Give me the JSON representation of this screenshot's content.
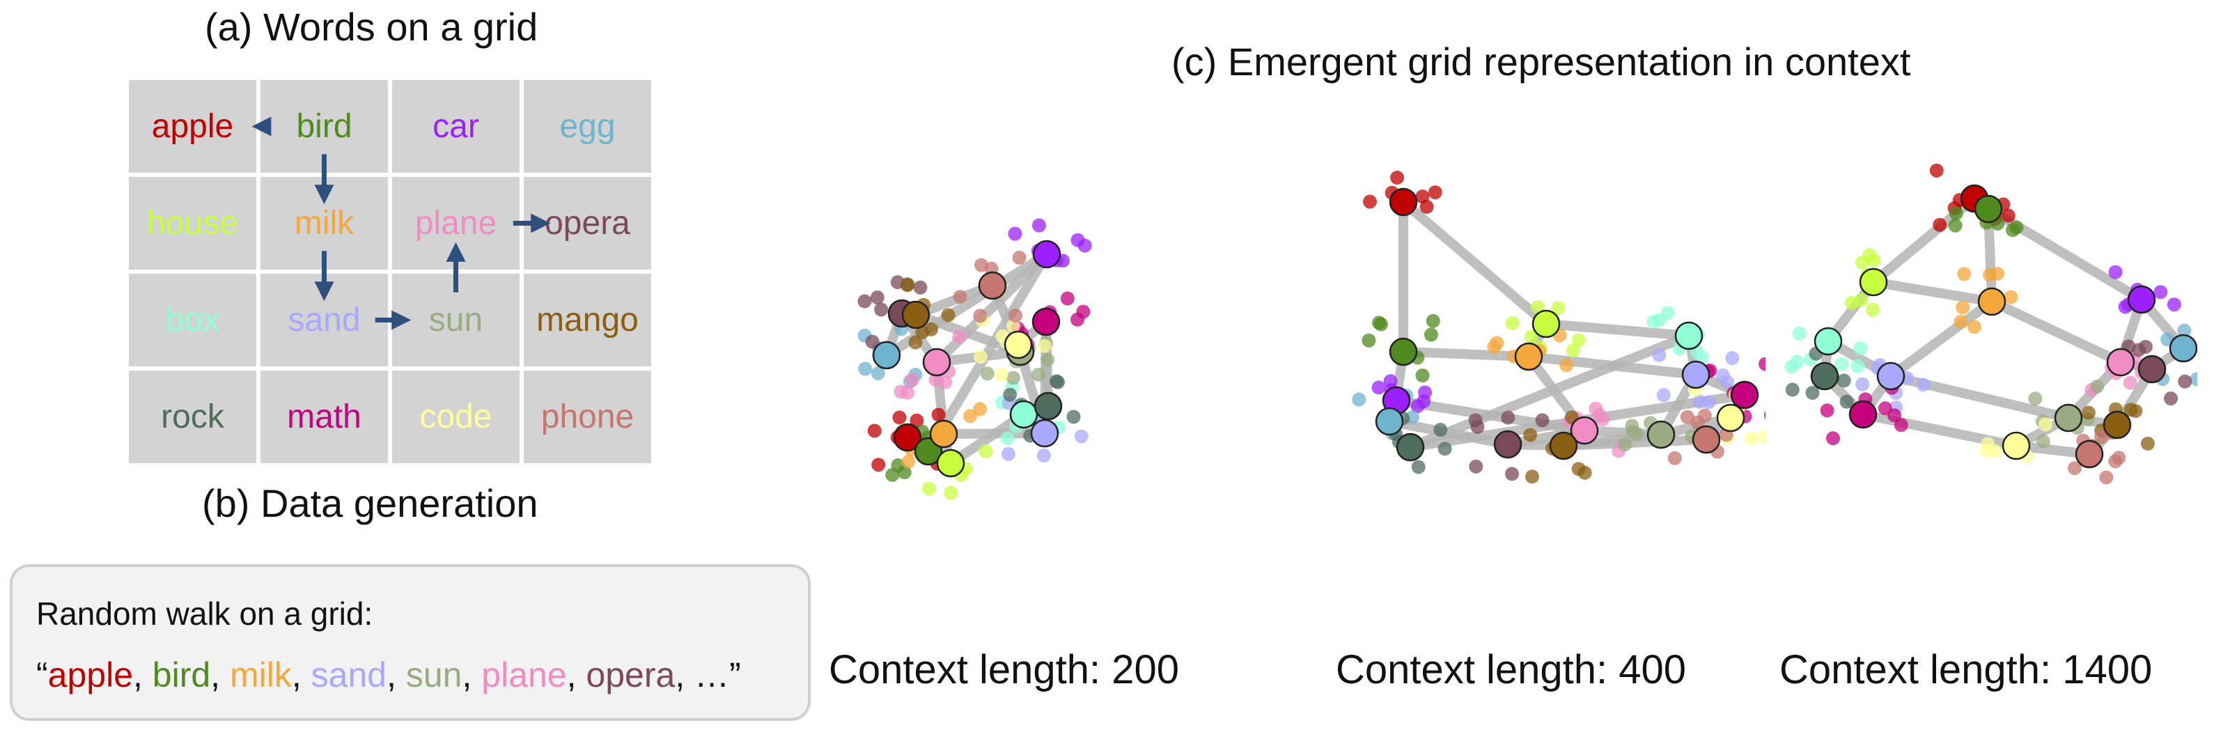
{
  "titles": {
    "a": "(a) Words on a grid",
    "b": "(b) Data generation",
    "c": "(c) Emergent grid representation in context"
  },
  "words": [
    {
      "text": "apple",
      "color": "#c00000"
    },
    {
      "text": "bird",
      "color": "#4f8a1e"
    },
    {
      "text": "car",
      "color": "#9b1fff"
    },
    {
      "text": "egg",
      "color": "#6fb3cf"
    },
    {
      "text": "house",
      "color": "#c8ff3c"
    },
    {
      "text": "milk",
      "color": "#f4a73a"
    },
    {
      "text": "plane",
      "color": "#f08cc3"
    },
    {
      "text": "opera",
      "color": "#7a4a5a"
    },
    {
      "text": "box",
      "color": "#8fffd8"
    },
    {
      "text": "sand",
      "color": "#a9a8ff"
    },
    {
      "text": "sun",
      "color": "#9aab82"
    },
    {
      "text": "mango",
      "color": "#8a5f12"
    },
    {
      "text": "rock",
      "color": "#4f6c61"
    },
    {
      "text": "math",
      "color": "#c4007f"
    },
    {
      "text": "code",
      "color": "#ffff9a"
    },
    {
      "text": "phone",
      "color": "#c57670"
    }
  ],
  "walk": {
    "title": "Random walk on a grid:",
    "open_quote": "“",
    "sequence": [
      {
        "text": "apple",
        "color": "#c00000"
      },
      {
        "text": "bird",
        "color": "#4f8a1e"
      },
      {
        "text": "milk",
        "color": "#f4a73a"
      },
      {
        "text": "sand",
        "color": "#a9a8ff"
      },
      {
        "text": "sun",
        "color": "#9aab82"
      },
      {
        "text": "plane",
        "color": "#f08cc3"
      },
      {
        "text": "opera",
        "color": "#7a4a5a"
      }
    ],
    "separator": ", ",
    "tail": ", …”",
    "arrow_color": "#2f4f7f"
  },
  "edge_color": "#b5b5b5",
  "panels": [
    {
      "label": "Context length: 200"
    },
    {
      "label": "Context length: 400"
    },
    {
      "label": "Context length: 1400"
    }
  ]
}
